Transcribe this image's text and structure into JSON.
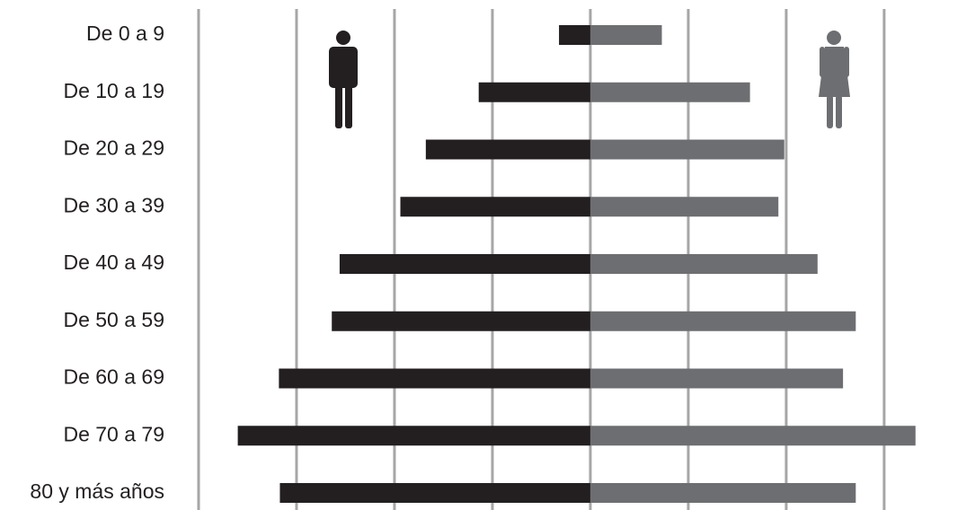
{
  "chart_data": {
    "type": "pyramid",
    "categories": [
      "De 0 a 9",
      "De 10 a 19",
      "De 20 a 29",
      "De 30 a 39",
      "De 40 a 49",
      "De 50 a 59",
      "De 60 a 69",
      "De 70 a 79",
      "80 y más años"
    ],
    "series": [
      {
        "color": "#231f20",
        "values": [
          -0.32,
          -1.14,
          -1.68,
          -1.94,
          -2.56,
          -2.64,
          -3.18,
          -3.6,
          -3.17
        ]
      },
      {
        "color": "#6d6e71",
        "values": [
          0.73,
          1.63,
          1.98,
          1.92,
          2.32,
          2.71,
          2.58,
          3.32,
          2.71
        ]
      }
    ],
    "xlim": [
      -4,
      3.9
    ],
    "xticks": [
      -4,
      -3,
      -2,
      -1,
      0,
      1,
      2,
      3
    ],
    "grid": true,
    "tick_labels": false
  }
}
